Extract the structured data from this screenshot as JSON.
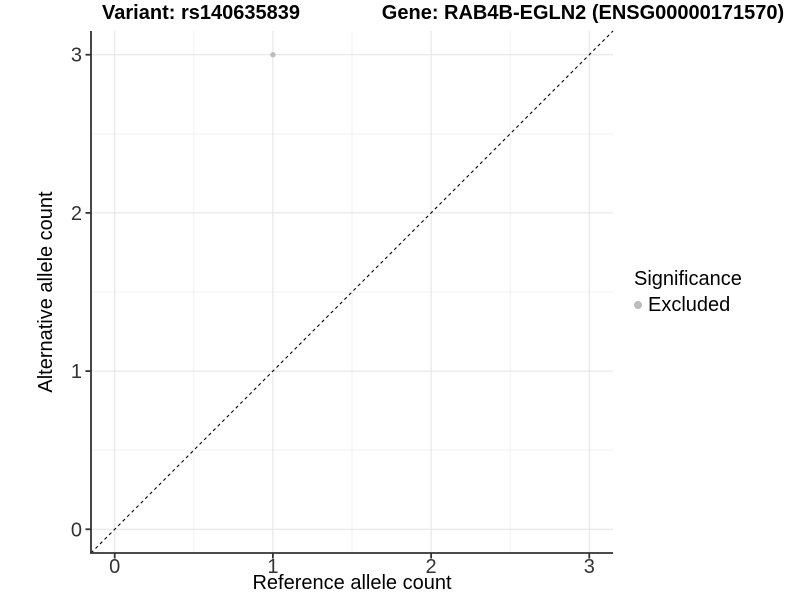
{
  "header": {
    "variant_title": "Variant: rs140635839",
    "gene_title": "Gene: RAB4B-EGLN2 (ENSG00000171570)"
  },
  "chart_data": {
    "type": "scatter",
    "xlabel": "Reference allele count",
    "ylabel": "Alternative allele count",
    "xlim": [
      -0.15,
      3.15
    ],
    "ylim": [
      -0.15,
      3.15
    ],
    "xticks": [
      0,
      1,
      2,
      3
    ],
    "yticks": [
      0,
      1,
      2,
      3
    ],
    "xminor": [
      0.5,
      1.5,
      2.5
    ],
    "yminor": [
      0.5,
      1.5,
      2.5
    ],
    "grid": "major+minor",
    "points": [
      {
        "x": 1,
        "y": 3,
        "significance": "Excluded"
      }
    ],
    "identity_line": {
      "equation": "y = x",
      "style": "dashed",
      "color": "#000000"
    },
    "legend": {
      "title": "Significance",
      "position": "right",
      "entries": [
        {
          "label": "Excluded",
          "marker": "circle",
          "color": "#bcbcbc"
        }
      ]
    }
  },
  "colors": {
    "background": "#ffffff",
    "point": "#bcbcbc",
    "grid_major": "#e3e3e3",
    "grid_minor": "#f0f0f0",
    "axis": "#333333",
    "tick_text": "#333333",
    "text": "#000000"
  }
}
